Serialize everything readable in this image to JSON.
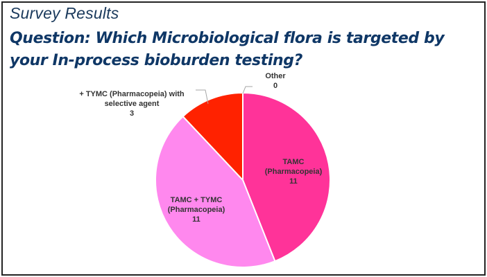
{
  "header": {
    "section_title": "Survey Results",
    "question_line1": "Question: Which Microbiological flora is targeted by",
    "question_line2": "your In-process bioburden testing?"
  },
  "chart_data": {
    "type": "pie",
    "title": "",
    "slices": [
      {
        "label_lines": [
          "TAMC",
          "(Pharmacopeia)"
        ],
        "value": 11,
        "value_text": "11",
        "color": "#ff3399"
      },
      {
        "label_lines": [
          "TAMC + TYMC",
          "(Pharmacopeia)"
        ],
        "value": 11,
        "value_text": "11",
        "color": "#ff88ee"
      },
      {
        "label_lines": [
          "+ TYMC (Pharmacopeia) with",
          "selective agent"
        ],
        "value": 3,
        "value_text": "3",
        "color": "#ff2200"
      },
      {
        "label_lines": [
          "Other"
        ],
        "value": 0,
        "value_text": "0",
        "color": "#ffc000"
      }
    ]
  }
}
